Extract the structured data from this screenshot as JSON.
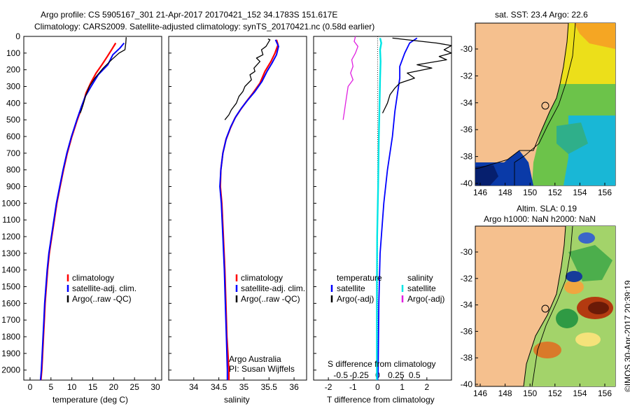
{
  "header": {
    "line1": "Argo profile: CS 5905167_301 21-Apr-2017 20170421_152 34.1783S 151.617E",
    "line2": "Climatology: CARS2009. Satellite-adjusted climatology: synTS_20170421.nc (0.58d earlier)"
  },
  "colors": {
    "climatology": "#ff0000",
    "satellite": "#0000ff",
    "argo": "#000000",
    "sat_salinity": "#00e5e5",
    "argo_salinity_adj": "#e020e0",
    "land": "#f5c08e"
  },
  "yaxis": {
    "ticks": [
      0,
      100,
      200,
      300,
      400,
      500,
      600,
      700,
      800,
      900,
      1000,
      1100,
      1200,
      1300,
      1400,
      1500,
      1600,
      1700,
      1800,
      1900,
      2000
    ],
    "range": [
      0,
      2060
    ]
  },
  "chart_data": [
    {
      "type": "line",
      "xlabel": "temperature (deg C)",
      "xlim": [
        -1.5,
        31.5
      ],
      "xticks": [
        "0",
        "5",
        "10",
        "15",
        "20",
        "25",
        "30"
      ],
      "xtick_values": [
        0,
        5,
        10,
        15,
        20,
        25,
        30
      ],
      "legend": [
        "climatology",
        "satellite-adj. clim.",
        "Argo(..raw -QC)"
      ],
      "series": [
        {
          "name": "climatology",
          "color": "#ff0000",
          "width": 2.2,
          "points": [
            [
              20.5,
              40
            ],
            [
              19.5,
              80
            ],
            [
              18.5,
              120
            ],
            [
              17.2,
              170
            ],
            [
              15.8,
              220
            ],
            [
              14.5,
              280
            ],
            [
              13.4,
              340
            ],
            [
              12.6,
              410
            ],
            [
              11.3,
              500
            ],
            [
              10,
              600
            ],
            [
              8.9,
              700
            ],
            [
              8,
              800
            ],
            [
              7.2,
              900
            ],
            [
              6.4,
              1000
            ],
            [
              5.8,
              1100
            ],
            [
              5.2,
              1200
            ],
            [
              4.6,
              1300
            ],
            [
              4.2,
              1400
            ],
            [
              3.9,
              1500
            ],
            [
              3.6,
              1600
            ],
            [
              3.4,
              1700
            ],
            [
              3.2,
              1800
            ],
            [
              3.0,
              1900
            ],
            [
              2.8,
              2000
            ],
            [
              2.6,
              2060
            ]
          ]
        },
        {
          "name": "satellite-adj. clim.",
          "color": "#0000ff",
          "width": 2.0,
          "points": [
            [
              22.5,
              40
            ],
            [
              21.5,
              70
            ],
            [
              19.8,
              110
            ],
            [
              18.6,
              170
            ],
            [
              16.3,
              230
            ],
            [
              14.6,
              300
            ],
            [
              13.2,
              360
            ],
            [
              12.3,
              420
            ],
            [
              11.2,
              500
            ],
            [
              9.9,
              600
            ],
            [
              8.8,
              700
            ],
            [
              7.9,
              800
            ],
            [
              7.1,
              900
            ],
            [
              6.3,
              1000
            ],
            [
              5.7,
              1100
            ],
            [
              5.1,
              1200
            ],
            [
              4.5,
              1300
            ],
            [
              4.1,
              1400
            ],
            [
              3.8,
              1500
            ],
            [
              3.5,
              1600
            ],
            [
              3.3,
              1700
            ],
            [
              3.1,
              1800
            ],
            [
              2.9,
              1900
            ],
            [
              2.7,
              2000
            ],
            [
              2.5,
              2060
            ]
          ]
        },
        {
          "name": "Argo(..raw -QC)",
          "color": "#000000",
          "width": 1.3,
          "points": [
            [
              23,
              5
            ],
            [
              22.9,
              40
            ],
            [
              22.7,
              80
            ],
            [
              21.3,
              100
            ],
            [
              19.5,
              140
            ],
            [
              17.5,
              190
            ],
            [
              15.5,
              250
            ],
            [
              14.2,
              300
            ],
            [
              13.4,
              350
            ],
            [
              12.8,
              400
            ],
            [
              12.3,
              440
            ],
            [
              12,
              460
            ]
          ]
        }
      ]
    },
    {
      "type": "line",
      "xlabel": "salinity",
      "xlim": [
        33.5,
        36.25
      ],
      "xticks": [
        "34",
        "34.5",
        "35",
        "35.5",
        "36"
      ],
      "xtick_values": [
        34,
        34.5,
        35,
        35.5,
        36
      ],
      "legend": [
        "climatology",
        "satellite-adj. clim.",
        "Argo(..raw -QC)"
      ],
      "notes": [
        "Argo Australia",
        "PI: Susan Wijffels"
      ],
      "series": [
        {
          "name": "climatology",
          "color": "#ff0000",
          "width": 2.2,
          "points": [
            [
              35.65,
              20
            ],
            [
              35.68,
              50
            ],
            [
              35.62,
              100
            ],
            [
              35.54,
              150
            ],
            [
              35.42,
              210
            ],
            [
              35.32,
              280
            ],
            [
              35.18,
              340
            ],
            [
              35.05,
              390
            ],
            [
              34.93,
              440
            ],
            [
              34.82,
              490
            ],
            [
              34.73,
              550
            ],
            [
              34.64,
              620
            ],
            [
              34.58,
              700
            ],
            [
              34.54,
              800
            ],
            [
              34.53,
              900
            ],
            [
              34.56,
              1000
            ],
            [
              34.59,
              1200
            ],
            [
              34.62,
              1400
            ],
            [
              34.64,
              1600
            ],
            [
              34.66,
              1800
            ],
            [
              34.7,
              2000
            ],
            [
              34.7,
              2060
            ]
          ]
        },
        {
          "name": "satellite-adj. clim.",
          "color": "#0000ff",
          "width": 2.0,
          "points": [
            [
              35.63,
              20
            ],
            [
              35.69,
              60
            ],
            [
              35.65,
              110
            ],
            [
              35.56,
              160
            ],
            [
              35.46,
              210
            ],
            [
              35.36,
              270
            ],
            [
              35.22,
              330
            ],
            [
              35.08,
              380
            ],
            [
              34.95,
              430
            ],
            [
              34.84,
              480
            ],
            [
              34.74,
              540
            ],
            [
              34.65,
              610
            ],
            [
              34.58,
              700
            ],
            [
              34.54,
              800
            ],
            [
              34.52,
              900
            ],
            [
              34.55,
              1000
            ],
            [
              34.58,
              1200
            ],
            [
              34.61,
              1400
            ],
            [
              34.63,
              1600
            ],
            [
              34.65,
              1800
            ],
            [
              34.67,
              2000
            ],
            [
              34.67,
              2060
            ]
          ]
        },
        {
          "name": "Argo(..raw -QC)",
          "color": "#000000",
          "width": 1.3,
          "points": [
            [
              35.48,
              15
            ],
            [
              35.52,
              20
            ],
            [
              35.44,
              60
            ],
            [
              35.35,
              80
            ],
            [
              35.38,
              110
            ],
            [
              35.25,
              130
            ],
            [
              35.32,
              150
            ],
            [
              35.2,
              190
            ],
            [
              35.22,
              210
            ],
            [
              35.12,
              230
            ],
            [
              35.15,
              260
            ],
            [
              35.02,
              300
            ],
            [
              34.98,
              330
            ],
            [
              34.9,
              360
            ],
            [
              34.85,
              400
            ],
            [
              34.75,
              440
            ],
            [
              34.7,
              470
            ],
            [
              34.62,
              500
            ]
          ]
        }
      ]
    },
    {
      "type": "line",
      "xlabel": "T difference from climatology",
      "xlabel_top": "S difference from climatology",
      "xlim": [
        -2.6,
        3.0
      ],
      "xticks": [
        "-2",
        "-1",
        "0",
        "1",
        "2"
      ],
      "xtick_values": [
        -2,
        -1,
        0,
        1,
        2
      ],
      "sticks": [
        "-0.5",
        "-0.25",
        "0",
        "0.25",
        "0.5"
      ],
      "stick_values": [
        -1.5,
        -0.75,
        0,
        0.75,
        1.5
      ],
      "legend_title_t": "temperature",
      "legend_title_s": "salinity",
      "legend_t": [
        "satellite",
        "Argo(-adj)"
      ],
      "legend_s": [
        "satellite",
        "Argo(-adj)"
      ],
      "series": [
        {
          "name": "satellite",
          "color": "#0000ff",
          "width": 1.8,
          "points": [
            [
              1.6,
              10
            ],
            [
              1.3,
              40
            ],
            [
              1.1,
              100
            ],
            [
              0.9,
              180
            ],
            [
              0.9,
              250
            ],
            [
              0.8,
              350
            ],
            [
              0.7,
              450
            ],
            [
              0.6,
              600
            ],
            [
              0.4,
              800
            ],
            [
              0.25,
              1000
            ],
            [
              0.1,
              1300
            ],
            [
              0.05,
              1600
            ],
            [
              0.02,
              2000
            ],
            [
              0,
              2060
            ]
          ]
        },
        {
          "name": "Argo(-adj)",
          "color": "#000000",
          "width": 1.3,
          "points": [
            [
              0.6,
              10
            ],
            [
              1.5,
              25
            ],
            [
              2.4,
              40
            ],
            [
              3.0,
              55
            ],
            [
              2.7,
              80
            ],
            [
              3.0,
              100
            ],
            [
              2.5,
              120
            ],
            [
              2.8,
              140
            ],
            [
              1.6,
              170
            ],
            [
              2.2,
              190
            ],
            [
              1.2,
              220
            ],
            [
              1.5,
              250
            ],
            [
              0.9,
              280
            ],
            [
              0.7,
              310
            ],
            [
              0.5,
              350
            ],
            [
              0.4,
              400
            ],
            [
              0.3,
              430
            ],
            [
              0.2,
              460
            ]
          ]
        },
        {
          "name": "satellite",
          "color": "#00e5e5",
          "width": 2.4,
          "points": [
            [
              0.1,
              10
            ],
            [
              0.15,
              40
            ],
            [
              0.1,
              80
            ],
            [
              0.12,
              150
            ],
            [
              0.1,
              250
            ],
            [
              0.08,
              400
            ],
            [
              0.05,
              600
            ],
            [
              0.02,
              900
            ],
            [
              -0.02,
              1200
            ],
            [
              -0.03,
              1500
            ],
            [
              -0.03,
              1800
            ],
            [
              -0.03,
              2060
            ]
          ]
        },
        {
          "name": "Argo(-adj)",
          "color": "#e020e0",
          "width": 1.3,
          "points": [
            [
              -0.9,
              0
            ],
            [
              -0.95,
              30
            ],
            [
              -0.8,
              60
            ],
            [
              -0.9,
              100
            ],
            [
              -1.05,
              140
            ],
            [
              -1.0,
              180
            ],
            [
              -1.1,
              220
            ],
            [
              -1.0,
              260
            ],
            [
              -1.2,
              300
            ],
            [
              -1.25,
              350
            ],
            [
              -1.3,
              400
            ],
            [
              -1.35,
              450
            ],
            [
              -1.4,
              500
            ]
          ]
        }
      ]
    },
    {
      "type": "heatmap",
      "title": "sat. SST: 23.4 Argo: 22.6",
      "xticks": [
        "146",
        "148",
        "150",
        "152",
        "154",
        "156"
      ],
      "yticks": [
        "-30",
        "-32",
        "-34",
        "-36",
        "-38",
        "-40"
      ]
    },
    {
      "type": "heatmap",
      "title_line1": "Altim. SLA: 0.19",
      "title_line2": "Argo h1000: NaN h2000: NaN",
      "xticks": [
        "146",
        "148",
        "150",
        "152",
        "154",
        "156"
      ],
      "yticks": [
        "-30",
        "-32",
        "-34",
        "-36",
        "-38",
        "-40"
      ]
    }
  ],
  "stamp": "©IMOS 30-Apr-2017 20:39:19"
}
